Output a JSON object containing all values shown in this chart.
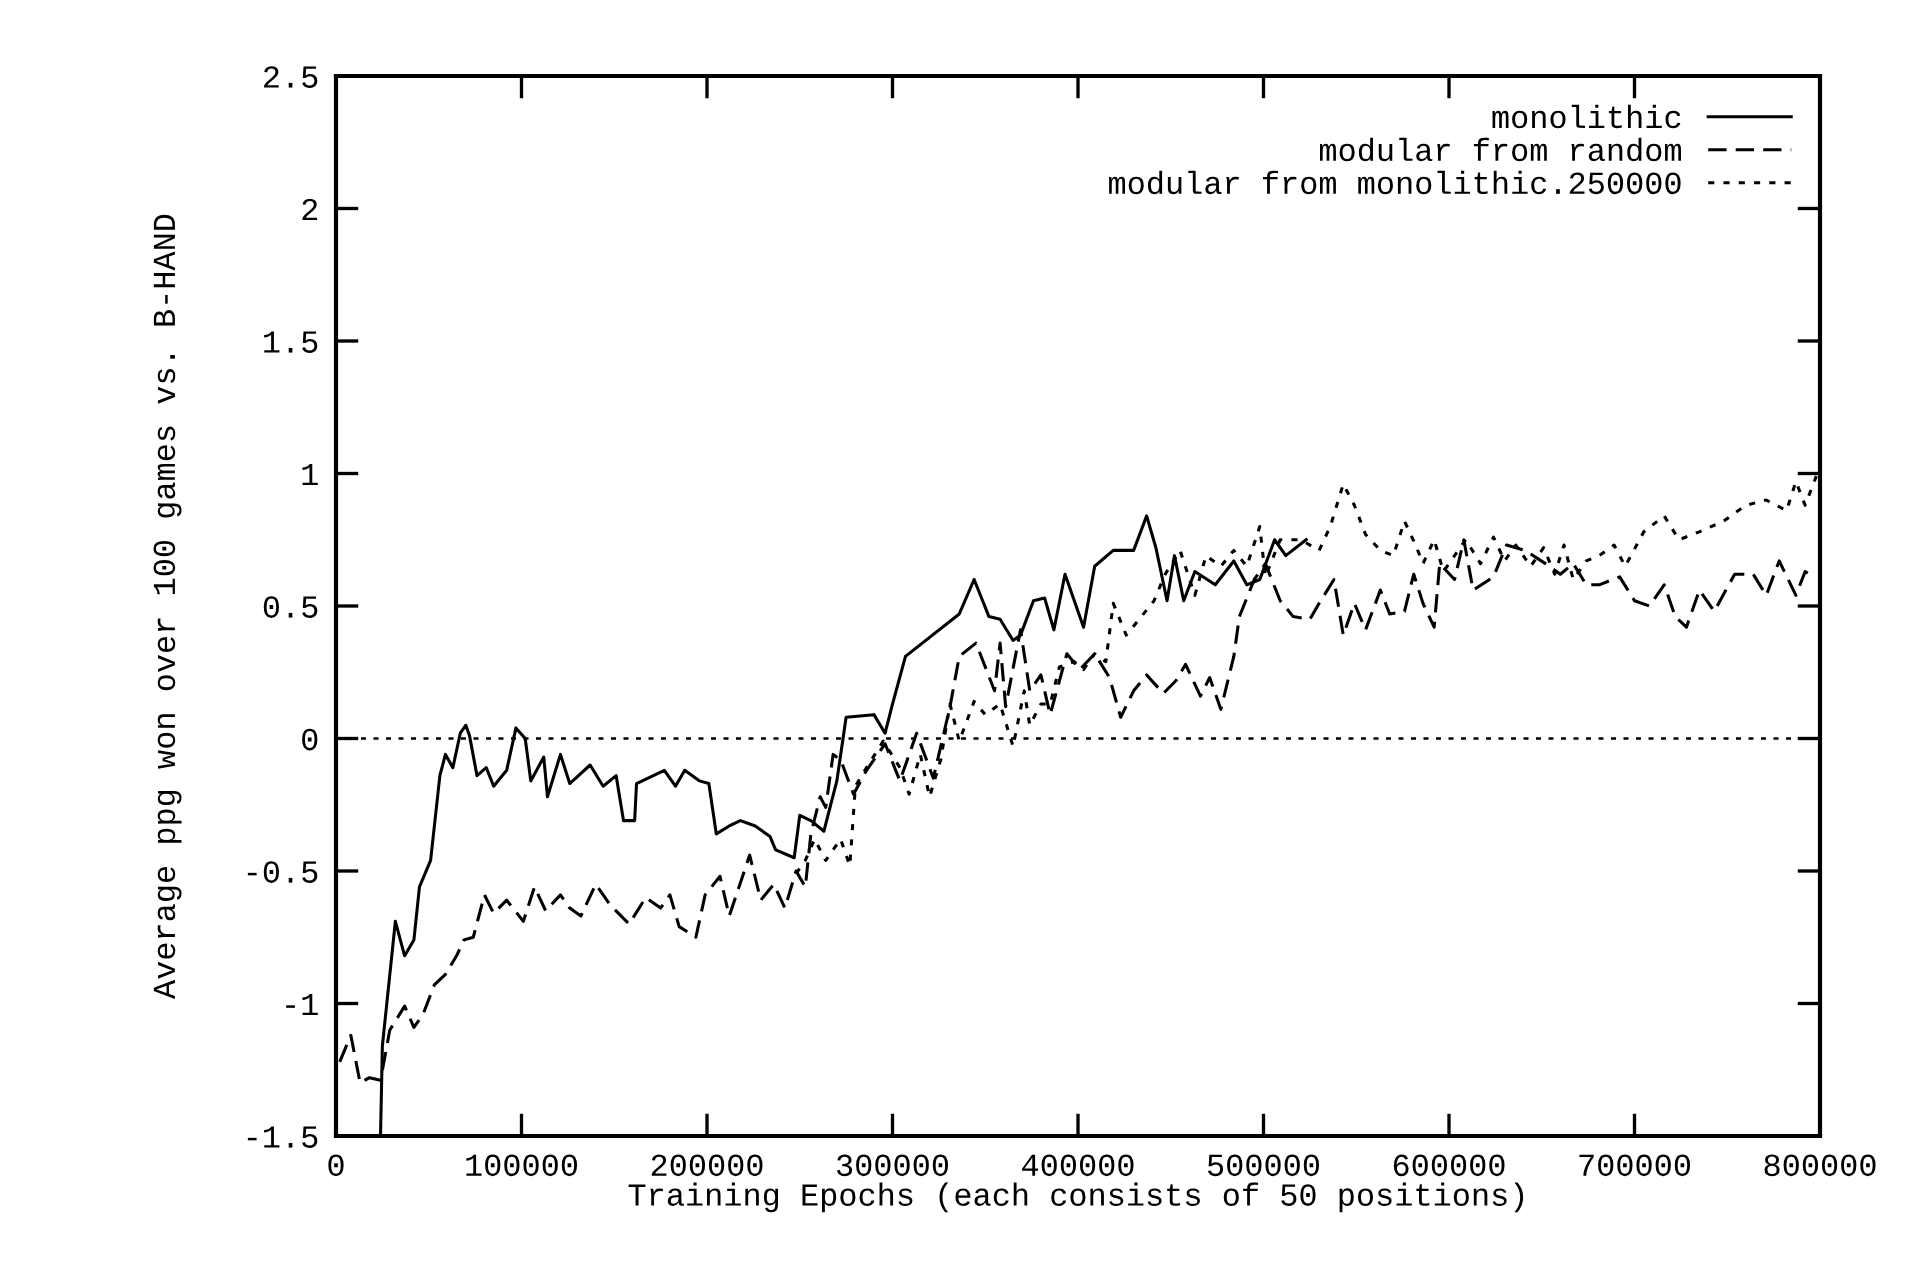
{
  "chart_data": {
    "type": "line",
    "xlabel": "Training Epochs (each consists of 50 positions)",
    "ylabel": "Average ppg won over 100 games vs. B-HAND",
    "xlim": [
      0,
      800000
    ],
    "ylim": [
      -1.5,
      2.5
    ],
    "xticks": [
      0,
      100000,
      200000,
      300000,
      400000,
      500000,
      600000,
      700000,
      800000
    ],
    "yticks": [
      -1.5,
      -1,
      -0.5,
      0,
      0.5,
      1,
      1.5,
      2,
      2.5
    ],
    "grid": false,
    "legend": "top right",
    "marker": "none",
    "ref_lines": [
      {
        "axis": "y",
        "value": 0,
        "color": "#000000",
        "line_style": "dotted"
      }
    ],
    "series": [
      {
        "name": "monolithic",
        "color": "#000000",
        "line_style": "solid",
        "x": [
          24000,
          25000,
          32000,
          37000,
          42000,
          45000,
          51000,
          56000,
          59000,
          63000,
          67000,
          70000,
          72000,
          76000,
          81000,
          85000,
          92000,
          97000,
          102000,
          105000,
          112000,
          114000,
          121000,
          126000,
          137000,
          144000,
          151000,
          155000,
          161000,
          162000,
          177000,
          183000,
          188000,
          196000,
          201000,
          205000,
          212000,
          218000,
          226000,
          234000,
          237000,
          247000,
          250000,
          256000,
          263000,
          270000,
          275000,
          290000,
          296000,
          300000,
          307000,
          336000,
          344000,
          352000,
          358000,
          365000,
          369000,
          376000,
          382000,
          387000,
          393000,
          403000,
          409000,
          419000,
          430000,
          437000,
          442000,
          448000,
          452000,
          457000,
          463000,
          474000,
          484000,
          491000,
          498000,
          506000,
          512000,
          523000
        ],
        "values": [
          -1.5,
          -1.16,
          -0.69,
          -0.82,
          -0.76,
          -0.56,
          -0.46,
          -0.14,
          -0.06,
          -0.11,
          0.02,
          0.05,
          0.01,
          -0.14,
          -0.11,
          -0.18,
          -0.12,
          0.04,
          0,
          -0.16,
          -0.07,
          -0.22,
          -0.06,
          -0.17,
          -0.1,
          -0.18,
          -0.14,
          -0.31,
          -0.31,
          -0.17,
          -0.12,
          -0.18,
          -0.12,
          -0.16,
          -0.17,
          -0.36,
          -0.33,
          -0.31,
          -0.33,
          -0.37,
          -0.42,
          -0.45,
          -0.29,
          -0.31,
          -0.35,
          -0.16,
          0.08,
          0.09,
          0.02,
          0.13,
          0.31,
          0.47,
          0.6,
          0.46,
          0.45,
          0.37,
          0.39,
          0.52,
          0.53,
          0.41,
          0.62,
          0.42,
          0.65,
          0.71,
          0.71,
          0.84,
          0.72,
          0.52,
          0.69,
          0.52,
          0.63,
          0.58,
          0.67,
          0.58,
          0.6,
          0.75,
          0.69,
          0.75
        ]
      },
      {
        "name": "modular from random",
        "color": "#000000",
        "line_style": "dashed",
        "x": [
          2000,
          8000,
          13000,
          18000,
          24000,
          29000,
          37000,
          42000,
          47000,
          53000,
          59000,
          65000,
          69000,
          74000,
          80000,
          85000,
          92000,
          101000,
          107000,
          113000,
          121000,
          126000,
          132000,
          140000,
          148000,
          158000,
          167000,
          175000,
          180000,
          185000,
          194000,
          199000,
          207000,
          212000,
          223000,
          229000,
          236000,
          242000,
          248000,
          253000,
          256000,
          261000,
          264000,
          268000,
          272000,
          279000,
          286000,
          296000,
          304000,
          313000,
          322000,
          331000,
          336000,
          345000,
          355000,
          358000,
          361000,
          369000,
          374000,
          380000,
          385000,
          394000,
          401000,
          409000,
          417000,
          423000,
          430000,
          437000,
          446000,
          453000,
          458000,
          466000,
          471000,
          477000,
          484000,
          487000,
          495000,
          501000,
          509000,
          516000,
          525000,
          530000,
          538000,
          543000,
          549000,
          555000,
          563000,
          568000,
          576000,
          581000,
          586000,
          592000,
          595000,
          603000,
          608000,
          613000,
          624000,
          631000,
          641000,
          652000,
          660000,
          667000,
          674000,
          681000,
          692000,
          700000,
          708000,
          716000,
          722000,
          728000,
          735000,
          743000,
          754000,
          764000,
          771000,
          778000,
          787000,
          792000,
          797000
        ],
        "values": [
          -1.22,
          -1.12,
          -1.3,
          -1.28,
          -1.29,
          -1.1,
          -1.01,
          -1.09,
          -1.04,
          -0.93,
          -0.89,
          -0.82,
          -0.76,
          -0.75,
          -0.59,
          -0.66,
          -0.61,
          -0.69,
          -0.56,
          -0.65,
          -0.59,
          -0.64,
          -0.67,
          -0.55,
          -0.63,
          -0.7,
          -0.6,
          -0.64,
          -0.59,
          -0.71,
          -0.75,
          -0.59,
          -0.52,
          -0.67,
          -0.44,
          -0.61,
          -0.55,
          -0.64,
          -0.5,
          -0.56,
          -0.36,
          -0.22,
          -0.26,
          -0.06,
          -0.08,
          -0.21,
          -0.12,
          -0.02,
          -0.16,
          0.02,
          -0.15,
          0.12,
          0.31,
          0.36,
          0.18,
          0.36,
          0.12,
          0.41,
          0.18,
          0.24,
          0.09,
          0.32,
          0.26,
          0.32,
          0.23,
          0.08,
          0.18,
          0.24,
          0.17,
          0.22,
          0.28,
          0.16,
          0.23,
          0.11,
          0.31,
          0.46,
          0.6,
          0.66,
          0.52,
          0.46,
          0.45,
          0.51,
          0.6,
          0.39,
          0.51,
          0.41,
          0.56,
          0.47,
          0.48,
          0.62,
          0.51,
          0.42,
          0.66,
          0.6,
          0.75,
          0.56,
          0.61,
          0.73,
          0.71,
          0.66,
          0.62,
          0.66,
          0.58,
          0.58,
          0.61,
          0.52,
          0.5,
          0.58,
          0.46,
          0.42,
          0.56,
          0.48,
          0.62,
          0.62,
          0.54,
          0.67,
          0.54,
          0.63,
          0.61
        ]
      },
      {
        "name": "modular from monolithic.250000",
        "color": "#000000",
        "line_style": "dotted",
        "x": [
          248000,
          253000,
          258000,
          264000,
          272000,
          277000,
          280000,
          286000,
          295000,
          304000,
          309000,
          315000,
          320000,
          326000,
          331000,
          336000,
          344000,
          350000,
          358000,
          365000,
          371000,
          374000,
          380000,
          385000,
          390000,
          398000,
          403000,
          409000,
          415000,
          419000,
          426000,
          433000,
          441000,
          447000,
          455000,
          463000,
          469000,
          477000,
          484000,
          491000,
          498000,
          501000,
          509000,
          520000,
          530000,
          536000,
          543000,
          549000,
          555000,
          563000,
          570000,
          576000,
          582000,
          586000,
          592000,
          597000,
          603000,
          609000,
          617000,
          624000,
          630000,
          636000,
          644000,
          651000,
          657000,
          662000,
          667000,
          674000,
          681000,
          689000,
          695000,
          705000,
          716000,
          724000,
          735000,
          748000,
          760000,
          771000,
          782000,
          787000,
          792000,
          798000
        ],
        "values": [
          -0.51,
          -0.46,
          -0.38,
          -0.46,
          -0.38,
          -0.48,
          -0.18,
          -0.11,
          -0.01,
          -0.11,
          -0.21,
          -0.06,
          -0.22,
          -0.08,
          0.13,
          -0.01,
          0.14,
          0.09,
          0.13,
          -0.03,
          0.18,
          0.05,
          0.13,
          0.13,
          0.27,
          0.29,
          0.26,
          0.32,
          0.29,
          0.51,
          0.39,
          0.45,
          0.52,
          0.62,
          0.71,
          0.54,
          0.69,
          0.65,
          0.71,
          0.65,
          0.8,
          0.61,
          0.75,
          0.75,
          0.71,
          0.8,
          0.96,
          0.88,
          0.77,
          0.71,
          0.69,
          0.82,
          0.73,
          0.66,
          0.75,
          0.63,
          0.69,
          0.75,
          0.66,
          0.76,
          0.67,
          0.73,
          0.65,
          0.72,
          0.62,
          0.73,
          0.6,
          0.67,
          0.69,
          0.73,
          0.65,
          0.78,
          0.84,
          0.75,
          0.78,
          0.82,
          0.88,
          0.9,
          0.86,
          0.97,
          0.88,
          0.99
        ]
      }
    ]
  }
}
